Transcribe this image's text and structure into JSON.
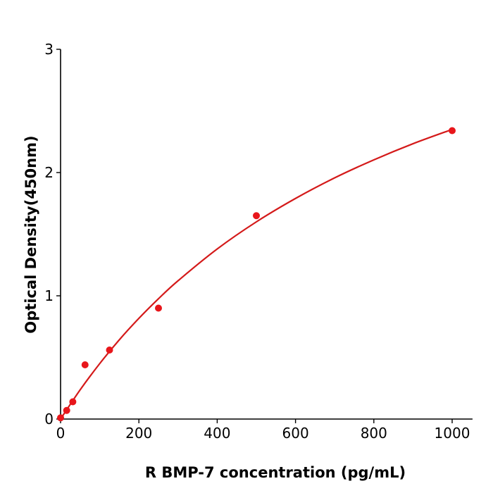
{
  "chart_data": {
    "type": "scatter",
    "title": "",
    "xlabel": "R  BMP-7 concentration (pg/mL)",
    "ylabel": "Optical Density(450nm)",
    "xlim": [
      0,
      1052
    ],
    "ylim": [
      0,
      3
    ],
    "x_ticks": [
      "0",
      "200",
      "400",
      "600",
      "800",
      "1000"
    ],
    "y_ticks": [
      "0",
      "1",
      "2",
      "3"
    ],
    "grid": false,
    "color": "#e8161b",
    "curve_color": "#d41a1a",
    "points": {
      "x": [
        0,
        15.6,
        31.25,
        62.5,
        125,
        250,
        500,
        1000
      ],
      "y": [
        0.01,
        0.07,
        0.14,
        0.44,
        0.56,
        0.9,
        1.65,
        2.34
      ]
    },
    "fit_curve": {
      "x": [
        0,
        50,
        100,
        150,
        200,
        250,
        300,
        400,
        500,
        600,
        700,
        800,
        900,
        1000
      ],
      "y": [
        0,
        0.237,
        0.45,
        0.643,
        0.817,
        0.976,
        1.122,
        1.38,
        1.6,
        1.79,
        1.957,
        2.103,
        2.234,
        2.35
      ]
    }
  }
}
